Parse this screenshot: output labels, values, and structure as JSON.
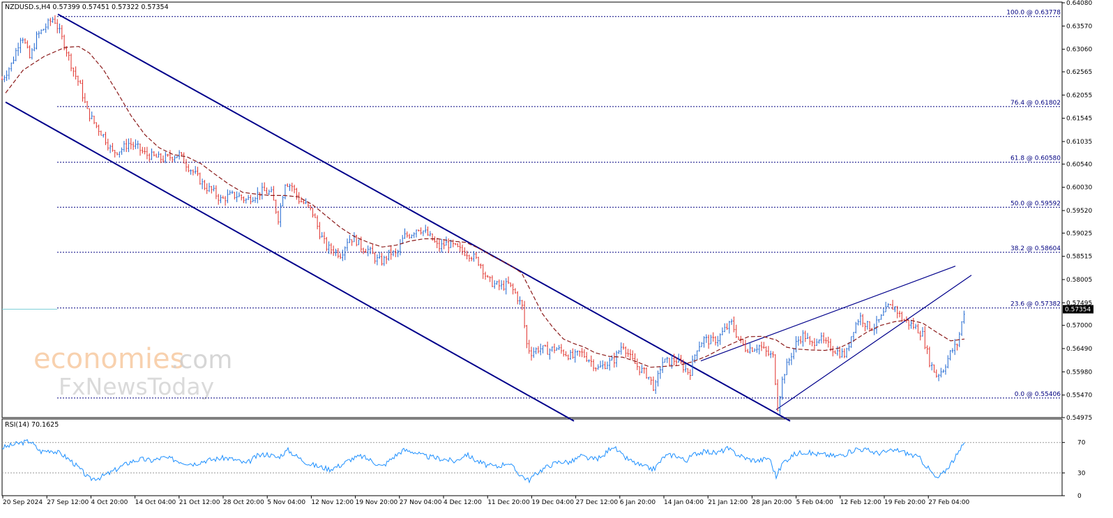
{
  "header": {
    "symbol_line": "NZDUSD.s,H4 0.57399 0.57451 0.57322 0.57354",
    "rsi_label": "RSI(14) 70.1625"
  },
  "watermark": {
    "brand": "economies",
    "brand_suffix": ".com",
    "sub": "FxNewsToday"
  },
  "colors": {
    "bull": "#1e66d0",
    "bear": "#e0302a",
    "ma": "#8b1a1a",
    "channel": "#00008b",
    "fib": "#000080",
    "rsi": "#1e90ff",
    "price_badge": "#000000"
  },
  "chart_data": [
    {
      "type": "candlestick",
      "symbol": "NZDUSD.s",
      "timeframe": "H4",
      "ylim": [
        0.54975,
        0.6408
      ],
      "y_ticks": [
        "0.64080",
        "0.63570",
        "0.63060",
        "0.62565",
        "0.62055",
        "0.61545",
        "0.61035",
        "0.60540",
        "0.60030",
        "0.59520",
        "0.59025",
        "0.58515",
        "0.58005",
        "0.57495",
        "0.57000",
        "0.56490",
        "0.55980",
        "0.55470",
        "0.54975"
      ],
      "x_ticks": [
        "20 Sep 2024",
        "27 Sep 12:00",
        "4 Oct 20:00",
        "14 Oct 04:00",
        "21 Oct 12:00",
        "28 Oct 20:00",
        "5 Nov 04:00",
        "12 Nov 12:00",
        "19 Nov 20:00",
        "27 Nov 04:00",
        "4 Dec 12:00",
        "11 Dec 20:00",
        "19 Dec 04:00",
        "27 Dec 12:00",
        "6 Jan 20:00",
        "14 Jan 04:00",
        "21 Jan 12:00",
        "28 Jan 20:00",
        "5 Feb 04:00",
        "12 Feb 12:00",
        "19 Feb 20:00",
        "27 Feb 04:00"
      ],
      "close_path": [
        [
          0,
          0.624
        ],
        [
          14,
          0.6275
        ],
        [
          28,
          0.634
        ],
        [
          40,
          0.6285
        ],
        [
          50,
          0.6335
        ],
        [
          62,
          0.6355
        ],
        [
          74,
          0.6375
        ],
        [
          82,
          0.6345
        ],
        [
          92,
          0.6305
        ],
        [
          102,
          0.626
        ],
        [
          112,
          0.6225
        ],
        [
          122,
          0.617
        ],
        [
          134,
          0.614
        ],
        [
          146,
          0.6115
        ],
        [
          158,
          0.608
        ],
        [
          170,
          0.6085
        ],
        [
          182,
          0.61
        ],
        [
          194,
          0.609
        ],
        [
          206,
          0.6075
        ],
        [
          218,
          0.607
        ],
        [
          230,
          0.6065
        ],
        [
          242,
          0.607
        ],
        [
          254,
          0.6075
        ],
        [
          266,
          0.605
        ],
        [
          278,
          0.603
        ],
        [
          290,
          0.6005
        ],
        [
          302,
          0.5995
        ],
        [
          314,
          0.5975
        ],
        [
          326,
          0.5985
        ],
        [
          338,
          0.5985
        ],
        [
          350,
          0.5975
        ],
        [
          362,
          0.5985
        ],
        [
          374,
          0.5995
        ],
        [
          386,
          0.599
        ],
        [
          396,
          0.5935
        ],
        [
          406,
          0.6015
        ],
        [
          416,
          0.6005
        ],
        [
          426,
          0.5975
        ],
        [
          436,
          0.5965
        ],
        [
          446,
          0.5945
        ],
        [
          456,
          0.59
        ],
        [
          466,
          0.587
        ],
        [
          476,
          0.5865
        ],
        [
          486,
          0.5855
        ],
        [
          496,
          0.589
        ],
        [
          506,
          0.589
        ],
        [
          516,
          0.587
        ],
        [
          526,
          0.5865
        ],
        [
          536,
          0.5845
        ],
        [
          546,
          0.584
        ],
        [
          556,
          0.586
        ],
        [
          566,
          0.5855
        ],
        [
          576,
          0.5895
        ],
        [
          586,
          0.59
        ],
        [
          596,
          0.5915
        ],
        [
          606,
          0.5905
        ],
        [
          616,
          0.589
        ],
        [
          626,
          0.587
        ],
        [
          636,
          0.588
        ],
        [
          646,
          0.5875
        ],
        [
          656,
          0.5865
        ],
        [
          666,
          0.586
        ],
        [
          676,
          0.585
        ],
        [
          686,
          0.5835
        ],
        [
          696,
          0.58
        ],
        [
          706,
          0.579
        ],
        [
          716,
          0.5785
        ],
        [
          726,
          0.579
        ],
        [
          736,
          0.577
        ],
        [
          746,
          0.574
        ],
        [
          752,
          0.566
        ],
        [
          758,
          0.564
        ],
        [
          770,
          0.565
        ],
        [
          782,
          0.5645
        ],
        [
          794,
          0.565
        ],
        [
          806,
          0.564
        ],
        [
          818,
          0.563
        ],
        [
          830,
          0.564
        ],
        [
          842,
          0.5625
        ],
        [
          854,
          0.5605
        ],
        [
          866,
          0.5615
        ],
        [
          878,
          0.5625
        ],
        [
          890,
          0.566
        ],
        [
          902,
          0.5625
        ],
        [
          914,
          0.5605
        ],
        [
          926,
          0.559
        ],
        [
          936,
          0.556
        ],
        [
          946,
          0.562
        ],
        [
          956,
          0.562
        ],
        [
          966,
          0.5625
        ],
        [
          976,
          0.561
        ],
        [
          986,
          0.5595
        ],
        [
          996,
          0.565
        ],
        [
          1006,
          0.567
        ],
        [
          1016,
          0.5665
        ],
        [
          1026,
          0.567
        ],
        [
          1036,
          0.569
        ],
        [
          1046,
          0.5705
        ],
        [
          1056,
          0.567
        ],
        [
          1066,
          0.565
        ],
        [
          1076,
          0.565
        ],
        [
          1086,
          0.5655
        ],
        [
          1096,
          0.564
        ],
        [
          1106,
          0.563
        ],
        [
          1112,
          0.552
        ],
        [
          1120,
          0.559
        ],
        [
          1130,
          0.563
        ],
        [
          1140,
          0.5665
        ],
        [
          1150,
          0.568
        ],
        [
          1160,
          0.5655
        ],
        [
          1170,
          0.5675
        ],
        [
          1180,
          0.566
        ],
        [
          1190,
          0.565
        ],
        [
          1200,
          0.564
        ],
        [
          1210,
          0.5635
        ],
        [
          1220,
          0.569
        ],
        [
          1230,
          0.572
        ],
        [
          1240,
          0.57
        ],
        [
          1250,
          0.5695
        ],
        [
          1260,
          0.5715
        ],
        [
          1270,
          0.574
        ],
        [
          1280,
          0.574
        ],
        [
          1290,
          0.5715
        ],
        [
          1300,
          0.5705
        ],
        [
          1310,
          0.5695
        ],
        [
          1320,
          0.568
        ],
        [
          1330,
          0.562
        ],
        [
          1340,
          0.559
        ],
        [
          1350,
          0.5605
        ],
        [
          1360,
          0.564
        ],
        [
          1370,
          0.566
        ],
        [
          1380,
          0.5735
        ]
      ],
      "ma_path": [
        [
          5,
          0.621
        ],
        [
          30,
          0.626
        ],
        [
          60,
          0.629
        ],
        [
          90,
          0.631
        ],
        [
          110,
          0.6312
        ],
        [
          125,
          0.6298
        ],
        [
          145,
          0.6262
        ],
        [
          165,
          0.6212
        ],
        [
          185,
          0.616
        ],
        [
          205,
          0.6118
        ],
        [
          225,
          0.609
        ],
        [
          245,
          0.6075
        ],
        [
          265,
          0.607
        ],
        [
          285,
          0.6055
        ],
        [
          305,
          0.6032
        ],
        [
          325,
          0.601
        ],
        [
          345,
          0.5992
        ],
        [
          365,
          0.5988
        ],
        [
          385,
          0.5985
        ],
        [
          405,
          0.5985
        ],
        [
          425,
          0.5982
        ],
        [
          445,
          0.5965
        ],
        [
          465,
          0.594
        ],
        [
          485,
          0.5915
        ],
        [
          505,
          0.5895
        ],
        [
          525,
          0.5882
        ],
        [
          545,
          0.5872
        ],
        [
          565,
          0.5876
        ],
        [
          585,
          0.5885
        ],
        [
          605,
          0.589
        ],
        [
          625,
          0.589
        ],
        [
          645,
          0.5885
        ],
        [
          665,
          0.5882
        ],
        [
          685,
          0.5868
        ],
        [
          705,
          0.585
        ],
        [
          725,
          0.5835
        ],
        [
          745,
          0.5815
        ],
        [
          760,
          0.577
        ],
        [
          775,
          0.5725
        ],
        [
          790,
          0.5695
        ],
        [
          805,
          0.567
        ],
        [
          820,
          0.566
        ],
        [
          835,
          0.5652
        ],
        [
          850,
          0.564
        ],
        [
          870,
          0.5632
        ],
        [
          890,
          0.563
        ],
        [
          910,
          0.562
        ],
        [
          930,
          0.5608
        ],
        [
          950,
          0.561
        ],
        [
          970,
          0.5612
        ],
        [
          990,
          0.562
        ],
        [
          1010,
          0.5632
        ],
        [
          1030,
          0.5648
        ],
        [
          1050,
          0.5662
        ],
        [
          1070,
          0.5675
        ],
        [
          1090,
          0.5676
        ],
        [
          1110,
          0.5668
        ],
        [
          1125,
          0.5652
        ],
        [
          1140,
          0.5648
        ],
        [
          1160,
          0.5646
        ],
        [
          1180,
          0.5645
        ],
        [
          1200,
          0.565
        ],
        [
          1220,
          0.5665
        ],
        [
          1240,
          0.5685
        ],
        [
          1260,
          0.57
        ],
        [
          1280,
          0.5708
        ],
        [
          1300,
          0.5712
        ],
        [
          1320,
          0.5705
        ],
        [
          1340,
          0.5685
        ],
        [
          1360,
          0.5666
        ],
        [
          1380,
          0.567
        ]
      ],
      "channel_lines": [
        {
          "name": "upper",
          "from": [
            80,
            0.6383
          ],
          "to": [
            1130,
            0.549
          ]
        },
        {
          "name": "lower",
          "from": [
            5,
            0.619
          ],
          "to": [
            820,
            0.549
          ]
        }
      ],
      "wedge_lines": [
        {
          "name": "wedge-upper-a",
          "from": [
            1002,
            0.5622
          ],
          "to": [
            1367,
            0.583
          ]
        },
        {
          "name": "wedge-upper-b",
          "from": [
            1110,
            0.5515
          ],
          "to": [
            1390,
            0.581
          ]
        }
      ],
      "fib_levels": [
        {
          "label": "100.0 @ 0.63778",
          "value": 0.63778
        },
        {
          "label": "76.4 @ 0.61802",
          "value": 0.61802
        },
        {
          "label": "61.8 @ 0.60580",
          "value": 0.6058
        },
        {
          "label": "50.0 @ 0.59592",
          "value": 0.59592
        },
        {
          "label": "38.2 @ 0.58604",
          "value": 0.58604
        },
        {
          "label": "23.6 @ 0.57382",
          "value": 0.57382
        },
        {
          "label": "0.0 @ 0.55406",
          "value": 0.55406
        }
      ],
      "current_price": "0.57354",
      "current_value": 0.57354
    },
    {
      "type": "line",
      "name": "RSI(14)",
      "ylim": [
        0,
        100
      ],
      "y_ticks": [
        "70",
        "30",
        "0"
      ],
      "levels": [
        70,
        30
      ],
      "path": [
        [
          0,
          63
        ],
        [
          20,
          68
        ],
        [
          40,
          72
        ],
        [
          55,
          58
        ],
        [
          70,
          60
        ],
        [
          85,
          55
        ],
        [
          100,
          45
        ],
        [
          115,
          32
        ],
        [
          125,
          22
        ],
        [
          140,
          24
        ],
        [
          155,
          30
        ],
        [
          170,
          38
        ],
        [
          185,
          45
        ],
        [
          200,
          48
        ],
        [
          215,
          46
        ],
        [
          230,
          50
        ],
        [
          245,
          48
        ],
        [
          260,
          44
        ],
        [
          275,
          42
        ],
        [
          290,
          46
        ],
        [
          305,
          48
        ],
        [
          320,
          50
        ],
        [
          335,
          47
        ],
        [
          350,
          42
        ],
        [
          365,
          52
        ],
        [
          380,
          55
        ],
        [
          395,
          50
        ],
        [
          410,
          60
        ],
        [
          425,
          50
        ],
        [
          440,
          42
        ],
        [
          455,
          38
        ],
        [
          470,
          35
        ],
        [
          485,
          40
        ],
        [
          500,
          48
        ],
        [
          515,
          52
        ],
        [
          530,
          46
        ],
        [
          545,
          38
        ],
        [
          560,
          50
        ],
        [
          575,
          60
        ],
        [
          590,
          58
        ],
        [
          605,
          52
        ],
        [
          620,
          50
        ],
        [
          635,
          48
        ],
        [
          650,
          45
        ],
        [
          665,
          55
        ],
        [
          680,
          46
        ],
        [
          695,
          40
        ],
        [
          710,
          38
        ],
        [
          725,
          44
        ],
        [
          740,
          30
        ],
        [
          755,
          20
        ],
        [
          770,
          32
        ],
        [
          785,
          40
        ],
        [
          800,
          45
        ],
        [
          815,
          44
        ],
        [
          830,
          52
        ],
        [
          845,
          48
        ],
        [
          860,
          50
        ],
        [
          875,
          66
        ],
        [
          890,
          52
        ],
        [
          905,
          44
        ],
        [
          920,
          38
        ],
        [
          935,
          35
        ],
        [
          950,
          52
        ],
        [
          965,
          54
        ],
        [
          980,
          46
        ],
        [
          995,
          56
        ],
        [
          1010,
          58
        ],
        [
          1025,
          56
        ],
        [
          1040,
          62
        ],
        [
          1055,
          54
        ],
        [
          1070,
          48
        ],
        [
          1085,
          46
        ],
        [
          1100,
          50
        ],
        [
          1110,
          25
        ],
        [
          1120,
          44
        ],
        [
          1135,
          54
        ],
        [
          1150,
          58
        ],
        [
          1165,
          55
        ],
        [
          1180,
          54
        ],
        [
          1195,
          52
        ],
        [
          1210,
          55
        ],
        [
          1225,
          62
        ],
        [
          1240,
          60
        ],
        [
          1255,
          56
        ],
        [
          1270,
          58
        ],
        [
          1285,
          60
        ],
        [
          1300,
          55
        ],
        [
          1315,
          50
        ],
        [
          1330,
          34
        ],
        [
          1340,
          22
        ],
        [
          1350,
          30
        ],
        [
          1360,
          42
        ],
        [
          1370,
          54
        ],
        [
          1380,
          70
        ]
      ],
      "last_value": "70.1625"
    }
  ]
}
